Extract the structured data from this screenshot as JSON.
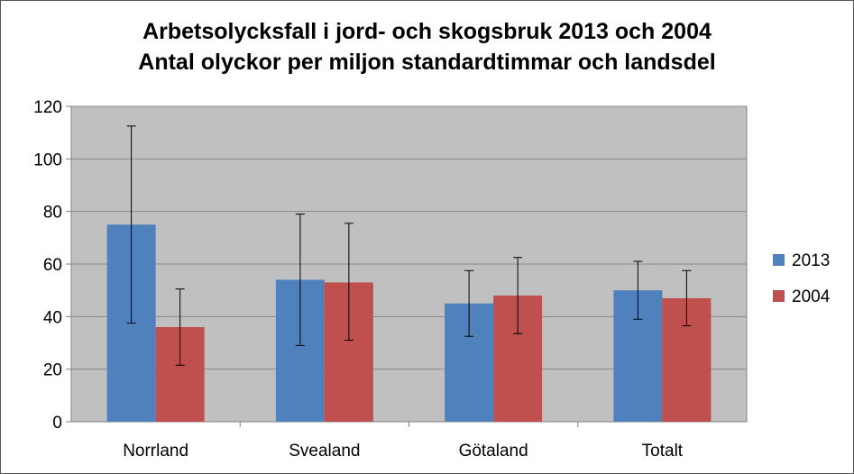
{
  "chart_data": {
    "type": "bar",
    "title": "Arbetsolycksfall i jord- och skogsbruk 2013 och 2004",
    "subtitle": "Antal olyckor per miljon standardtimmar och landsdel",
    "xlabel": "",
    "ylabel": "",
    "categories": [
      "Norrland",
      "Svealand",
      "Götaland",
      "Totalt"
    ],
    "ylim": [
      0,
      120
    ],
    "yticks": [
      0,
      20,
      40,
      60,
      80,
      100,
      120
    ],
    "grid": true,
    "legend_position": "right",
    "plot_background": "#c0c0c0",
    "series": [
      {
        "name": "2013",
        "color": "#4f81bd",
        "values": [
          75,
          54,
          45,
          50
        ],
        "error_low": [
          37.5,
          29,
          32.5,
          39
        ],
        "error_high": [
          112.5,
          79,
          57.5,
          61
        ]
      },
      {
        "name": "2004",
        "color": "#c0504d",
        "values": [
          36,
          53,
          48,
          47
        ],
        "error_low": [
          21.5,
          31,
          33.5,
          36.5
        ],
        "error_high": [
          50.5,
          75.5,
          62.5,
          57.5
        ]
      }
    ]
  }
}
